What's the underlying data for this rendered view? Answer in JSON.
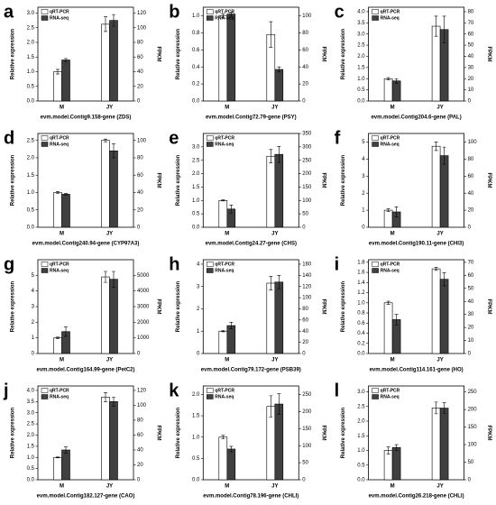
{
  "chart_data": [
    {
      "type": "bar",
      "label": "a",
      "xlabel": "evm.model.Contig9.158-gene (ZDS)",
      "ylabel": "Relative expression",
      "y2label": "FPKM",
      "categories": [
        "M",
        "JY"
      ],
      "series": [
        {
          "name": "qRT-PCR",
          "color": "#ffffff",
          "values": [
            1.0,
            2.62
          ],
          "errors": [
            0.08,
            0.25
          ]
        },
        {
          "name": "RNA-seq",
          "color": "#404040",
          "axis": "y2",
          "values": [
            56,
            110
          ],
          "errors": [
            2,
            8
          ]
        }
      ],
      "ylim": [
        0,
        3.2
      ],
      "yticks": [
        {
          "value": 0,
          "label": "0.0"
        },
        0.5,
        {
          "value": 1,
          "label": "1.0"
        },
        1.5,
        {
          "value": 2,
          "label": "2.0"
        },
        2.5,
        {
          "value": 3,
          "label": "3.0"
        }
      ],
      "y2lim": [
        0,
        128
      ],
      "y2ticks": [
        0,
        20,
        40,
        60,
        80,
        100,
        120
      ]
    },
    {
      "type": "bar",
      "label": "b",
      "xlabel": "evm.model.Contig72.79-gene (PSY)",
      "ylabel": "Relative expression",
      "y2label": "FPKM",
      "categories": [
        "M",
        "JY"
      ],
      "series": [
        {
          "name": "qRT-PCR",
          "color": "#ffffff",
          "values": [
            1.0,
            0.78
          ],
          "errors": [
            0.02,
            0.15
          ]
        },
        {
          "name": "RNA-seq",
          "color": "#404040",
          "axis": "y2",
          "values": [
            102,
            37
          ],
          "errors": [
            2,
            3
          ]
        }
      ],
      "ylim": [
        0,
        1.1
      ],
      "yticks": [
        {
          "value": 0,
          "label": "0.0"
        },
        0.2,
        0.4,
        0.6,
        0.8,
        {
          "value": 1,
          "label": "1.0"
        }
      ],
      "y2lim": [
        0,
        110
      ],
      "y2ticks": [
        0,
        20,
        40,
        60,
        80,
        100
      ]
    },
    {
      "type": "bar",
      "label": "c",
      "xlabel": "evm.model.Contig204.6-gene (PAL)",
      "ylabel": "Relative expression",
      "y2label": "FPKM",
      "categories": [
        "M",
        "JY"
      ],
      "series": [
        {
          "name": "qRT-PCR",
          "color": "#ffffff",
          "values": [
            1.0,
            3.35
          ],
          "errors": [
            0.05,
            0.45
          ]
        },
        {
          "name": "RNA-seq",
          "color": "#404040",
          "axis": "y2",
          "values": [
            18,
            64
          ],
          "errors": [
            2,
            12
          ]
        }
      ],
      "ylim": [
        0,
        4.2
      ],
      "yticks": [
        {
          "value": 0,
          "label": "0.0"
        },
        0.5,
        {
          "value": 1,
          "label": "1.0"
        },
        1.5,
        {
          "value": 2,
          "label": "2.0"
        },
        2.5,
        {
          "value": 3,
          "label": "3.0"
        },
        3.5,
        {
          "value": 4,
          "label": "4.0"
        }
      ],
      "y2lim": [
        0,
        84
      ],
      "y2ticks": [
        0,
        10,
        20,
        30,
        40,
        50,
        60,
        70,
        80
      ]
    },
    {
      "type": "bar",
      "label": "d",
      "xlabel": "evm.model.Contig240.94-gene (CYP97A3)",
      "ylabel": "Relative expression",
      "y2label": "FPKM",
      "categories": [
        "M",
        "JY"
      ],
      "series": [
        {
          "name": "qRT-PCR",
          "color": "#ffffff",
          "values": [
            1.0,
            2.5
          ],
          "errors": [
            0.03,
            0.04
          ]
        },
        {
          "name": "RNA-seq",
          "color": "#404040",
          "axis": "y2",
          "values": [
            38,
            88
          ],
          "errors": [
            1,
            8
          ]
        }
      ],
      "ylim": [
        0,
        2.7
      ],
      "yticks": [
        {
          "value": 0,
          "label": "0.0"
        },
        0.5,
        {
          "value": 1,
          "label": "1.0"
        },
        1.5,
        {
          "value": 2,
          "label": "2.0"
        },
        2.5
      ],
      "y2lim": [
        0,
        108
      ],
      "y2ticks": [
        0,
        20,
        40,
        60,
        80,
        100
      ]
    },
    {
      "type": "bar",
      "label": "e",
      "xlabel": "evm.model.Contig24.27-gene (CHS)",
      "ylabel": "Relative expression",
      "y2label": "FPKM",
      "categories": [
        "M",
        "JY"
      ],
      "series": [
        {
          "name": "qRT-PCR",
          "color": "#ffffff",
          "values": [
            1.0,
            2.65
          ],
          "errors": [
            0.02,
            0.25
          ]
        },
        {
          "name": "RNA-seq",
          "color": "#404040",
          "axis": "y2",
          "values": [
            68,
            272
          ],
          "errors": [
            15,
            30
          ]
        }
      ],
      "ylim": [
        0,
        3.5
      ],
      "yticks": [
        {
          "value": 0,
          "label": "0.0"
        },
        0.5,
        {
          "value": 1,
          "label": "1.0"
        },
        1.5,
        {
          "value": 2,
          "label": "2.0"
        },
        2.5,
        {
          "value": 3,
          "label": "3.0"
        }
      ],
      "y2lim": [
        0,
        350
      ],
      "y2ticks": [
        0,
        50,
        100,
        150,
        200,
        250,
        300,
        350
      ]
    },
    {
      "type": "bar",
      "label": "f",
      "xlabel": "evm.model.Contig190.11-gene (CHI3)",
      "ylabel": "Relative expression",
      "y2label": "FPKM",
      "categories": [
        "M",
        "JY"
      ],
      "series": [
        {
          "name": "qRT-PCR",
          "color": "#ffffff",
          "values": [
            1.0,
            4.75
          ],
          "errors": [
            0.08,
            0.25
          ]
        },
        {
          "name": "RNA-seq",
          "color": "#404040",
          "axis": "y2",
          "values": [
            18,
            84
          ],
          "errors": [
            6,
            10
          ]
        }
      ],
      "ylim": [
        0,
        5.5
      ],
      "yticks": [
        0,
        1,
        2,
        3,
        4,
        5
      ],
      "y2lim": [
        0,
        110
      ],
      "y2ticks": [
        0,
        20,
        40,
        60,
        80,
        100
      ]
    },
    {
      "type": "bar",
      "label": "g",
      "xlabel": "evm.model.Contig164.99-gene (PetC2)",
      "ylabel": "Relative expression",
      "y2label": "FPKM",
      "categories": [
        "M",
        "JY"
      ],
      "series": [
        {
          "name": "qRT-PCR",
          "color": "#ffffff",
          "values": [
            1.0,
            4.9
          ],
          "errors": [
            0.05,
            0.35
          ]
        },
        {
          "name": "RNA-seq",
          "color": "#404040",
          "axis": "y2",
          "values": [
            1400,
            4750
          ],
          "errors": [
            300,
            500
          ]
        }
      ],
      "ylim": [
        0,
        6
      ],
      "yticks": [
        0,
        1,
        2,
        3,
        4,
        5
      ],
      "y2lim": [
        0,
        6000
      ],
      "y2ticks": [
        0,
        1000,
        2000,
        3000,
        4000,
        5000
      ]
    },
    {
      "type": "bar",
      "label": "h",
      "xlabel": "evm.model.Contig79.172-gene (PSB39)",
      "ylabel": "Relative expression",
      "y2label": "FPKM",
      "categories": [
        "M",
        "JY"
      ],
      "series": [
        {
          "name": "qRT-PCR",
          "color": "#ffffff",
          "values": [
            1.0,
            3.15
          ],
          "errors": [
            0.03,
            0.3
          ]
        },
        {
          "name": "RNA-seq",
          "color": "#404040",
          "axis": "y2",
          "values": [
            50,
            128
          ],
          "errors": [
            6,
            12
          ]
        }
      ],
      "ylim": [
        0,
        4.2
      ],
      "yticks": [
        0,
        1,
        2,
        3,
        4
      ],
      "y2lim": [
        0,
        168
      ],
      "y2ticks": [
        0,
        20,
        40,
        60,
        80,
        100,
        120,
        140,
        160
      ]
    },
    {
      "type": "bar",
      "label": "i",
      "xlabel": "evm.model.Contig114.161-gene (HO)",
      "ylabel": "Relative expression",
      "y2label": "FPKM",
      "categories": [
        "M",
        "JY"
      ],
      "series": [
        {
          "name": "qRT-PCR",
          "color": "#ffffff",
          "values": [
            1.0,
            1.67
          ],
          "errors": [
            0.03,
            0.03
          ]
        },
        {
          "name": "RNA-seq",
          "color": "#404040",
          "axis": "y2",
          "values": [
            26,
            57
          ],
          "errors": [
            4,
            5
          ]
        }
      ],
      "ylim": [
        0,
        1.85
      ],
      "yticks": [
        {
          "value": 0,
          "label": "0.0"
        },
        0.2,
        0.4,
        0.6,
        0.8,
        {
          "value": 1,
          "label": "1.0"
        },
        1.2,
        1.4,
        1.6,
        1.8
      ],
      "y2lim": [
        0,
        72
      ],
      "y2ticks": [
        0,
        10,
        20,
        30,
        40,
        50,
        60,
        70
      ]
    },
    {
      "type": "bar",
      "label": "j",
      "xlabel": "evm.model.Contig182.127-gene (CAO)",
      "ylabel": "Relative expression",
      "y2label": "FPKM",
      "categories": [
        "M",
        "JY"
      ],
      "series": [
        {
          "name": "qRT-PCR",
          "color": "#ffffff",
          "values": [
            1.0,
            3.7
          ],
          "errors": [
            0.02,
            0.2
          ]
        },
        {
          "name": "RNA-seq",
          "color": "#404040",
          "axis": "y2",
          "values": [
            40,
            105
          ],
          "errors": [
            4,
            6
          ]
        }
      ],
      "ylim": [
        0,
        4.2
      ],
      "yticks": [
        {
          "value": 0,
          "label": "0.0"
        },
        0.5,
        {
          "value": 1,
          "label": "1.0"
        },
        1.5,
        {
          "value": 2,
          "label": "2.0"
        },
        2.5,
        {
          "value": 3,
          "label": "3.0"
        },
        3.5,
        {
          "value": 4,
          "label": "4.0"
        }
      ],
      "y2lim": [
        0,
        126
      ],
      "y2ticks": [
        0,
        20,
        40,
        60,
        80,
        100,
        120
      ]
    },
    {
      "type": "bar",
      "label": "k",
      "xlabel": "evm.model.Contig78.196-gene (CHLI)",
      "ylabel": "Relative expression",
      "y2label": "FPKM",
      "categories": [
        "M",
        "JY"
      ],
      "series": [
        {
          "name": "qRT-PCR",
          "color": "#ffffff",
          "values": [
            1.0,
            1.72
          ],
          "errors": [
            0.04,
            0.25
          ]
        },
        {
          "name": "RNA-seq",
          "color": "#404040",
          "axis": "y2",
          "values": [
            90,
            222
          ],
          "errors": [
            8,
            30
          ]
        }
      ],
      "ylim": [
        0,
        2.2
      ],
      "yticks": [
        {
          "value": 0,
          "label": "0.0"
        },
        0.5,
        {
          "value": 1,
          "label": "1.0"
        },
        1.5,
        {
          "value": 2,
          "label": "2.0"
        }
      ],
      "y2lim": [
        0,
        275
      ],
      "y2ticks": [
        0,
        50,
        100,
        150,
        200,
        250
      ]
    },
    {
      "type": "bar",
      "label": "l",
      "xlabel": "evm.model.Contig26.218-gene (CHLI)",
      "ylabel": "Relative expression",
      "y2label": "FPKM",
      "categories": [
        "M",
        "JY"
      ],
      "series": [
        {
          "name": "qRT-PCR",
          "color": "#ffffff",
          "values": [
            1.0,
            2.45
          ],
          "errors": [
            0.12,
            0.2
          ]
        },
        {
          "name": "RNA-seq",
          "color": "#404040",
          "axis": "y2",
          "values": [
            92,
            204
          ],
          "errors": [
            8,
            15
          ]
        }
      ],
      "ylim": [
        0,
        3.2
      ],
      "yticks": [
        {
          "value": 0,
          "label": "0.0"
        },
        0.5,
        {
          "value": 1,
          "label": "1.0"
        },
        1.5,
        {
          "value": 2,
          "label": "2.0"
        },
        2.5,
        {
          "value": 3,
          "label": "3.0"
        }
      ],
      "y2lim": [
        0,
        267
      ],
      "y2ticks": [
        0,
        50,
        100,
        150,
        200,
        250
      ]
    }
  ]
}
